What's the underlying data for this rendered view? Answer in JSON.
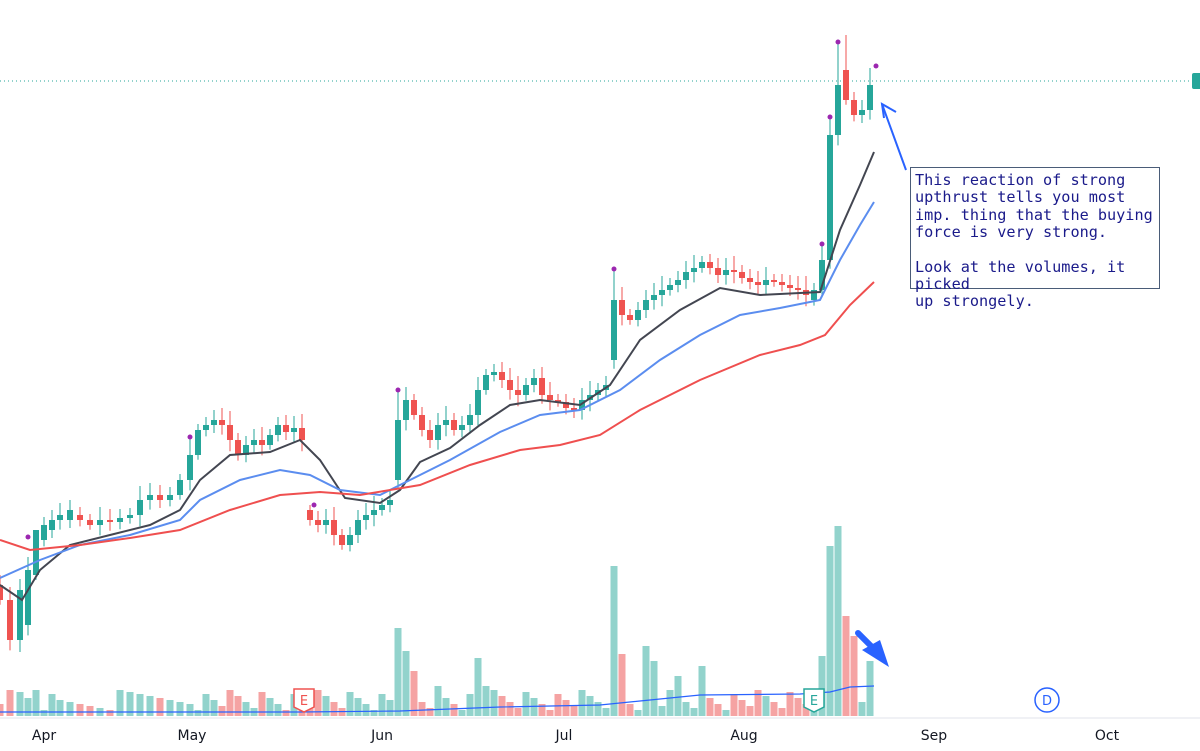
{
  "chart_data": {
    "type": "candlestick",
    "x_axis_ticks": [
      "Apr",
      "May",
      "Jun",
      "Jul",
      "Aug",
      "Sep",
      "Oct"
    ],
    "moving_averages": [
      {
        "color": "#434651"
      },
      {
        "color": "#5b8def"
      },
      {
        "color": "#ef4f4f"
      }
    ],
    "price_line_style": "dotted",
    "up_color": "#26a69a",
    "down_color": "#ef5350",
    "volume_up_color": "#92d3cc",
    "volume_down_color": "#f5a3a3",
    "volume_ma_color": "#2962ff",
    "event_markers": [
      {
        "label": "E",
        "color": "#ef5350"
      },
      {
        "label": "E",
        "color": "#26a69a"
      },
      {
        "label": "D",
        "color": "#2962ff"
      }
    ],
    "high_marker_color": "#9c27b0",
    "arrow_color": "#2962ff"
  },
  "annotation": {
    "line1": "This reaction of strong",
    "line2": "upthrust tells you most",
    "line3": "imp. thing that the buying",
    "line4": "force is very strong.",
    "line5": "Look at the volumes, it picked",
    "line6": "up strongely."
  }
}
